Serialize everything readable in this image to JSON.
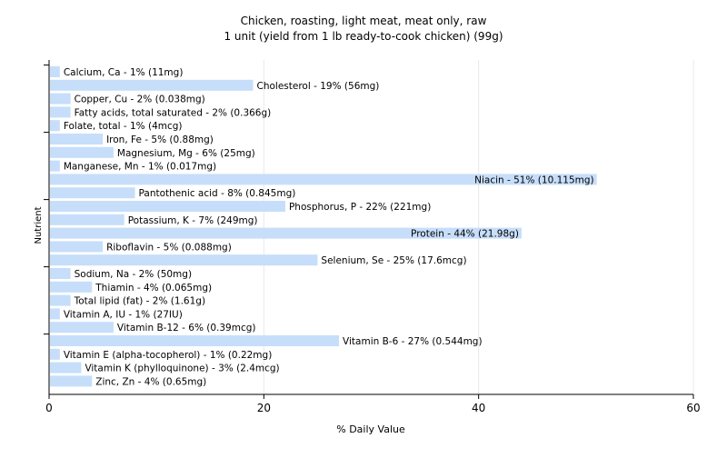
{
  "chart_data": {
    "type": "bar",
    "orientation": "horizontal",
    "title": "Chicken, roasting, light meat, meat only, raw",
    "subtitle": "1 unit (yield from 1 lb ready-to-cook chicken) (99g)",
    "xlabel": "% Daily Value",
    "ylabel": "Nutrient",
    "xlim": [
      0,
      60
    ],
    "xticks": [
      0,
      20,
      40,
      60
    ],
    "grid": true,
    "legend": "none",
    "bar_color": "#c6defa",
    "categories": [
      "Calcium, Ca",
      "Cholesterol",
      "Copper, Cu",
      "Fatty acids, total saturated",
      "Folate, total",
      "Iron, Fe",
      "Magnesium, Mg",
      "Manganese, Mn",
      "Niacin",
      "Pantothenic acid",
      "Phosphorus, P",
      "Potassium, K",
      "Protein",
      "Riboflavin",
      "Selenium, Se",
      "Sodium, Na",
      "Thiamin",
      "Total lipid (fat)",
      "Vitamin A, IU",
      "Vitamin B-12",
      "Vitamin B-6",
      "Vitamin E (alpha-tocopherol)",
      "Vitamin K (phylloquinone)",
      "Zinc, Zn"
    ],
    "values": [
      1,
      19,
      2,
      2,
      1,
      5,
      6,
      1,
      51,
      8,
      22,
      7,
      44,
      5,
      25,
      2,
      4,
      2,
      1,
      6,
      27,
      1,
      3,
      4
    ],
    "amounts": [
      "11mg",
      "56mg",
      "0.038mg",
      "0.366g",
      "4mcg",
      "0.88mg",
      "25mg",
      "0.017mg",
      "10.115mg",
      "0.845mg",
      "221mg",
      "249mg",
      "21.98g",
      "0.088mg",
      "17.6mcg",
      "50mg",
      "0.065mg",
      "1.61g",
      "27IU",
      "0.39mcg",
      "0.544mg",
      "0.22mg",
      "2.4mcg",
      "0.65mg"
    ],
    "labels": [
      "Calcium, Ca - 1% (11mg)",
      "Cholesterol - 19% (56mg)",
      "Copper, Cu - 2% (0.038mg)",
      "Fatty acids, total saturated - 2% (0.366g)",
      "Folate, total - 1% (4mcg)",
      "Iron, Fe - 5% (0.88mg)",
      "Magnesium, Mg - 6% (25mg)",
      "Manganese, Mn - 1% (0.017mg)",
      "Niacin - 51% (10.115mg)",
      "Pantothenic acid - 8% (0.845mg)",
      "Phosphorus, P - 22% (221mg)",
      "Potassium, K - 7% (249mg)",
      "Protein - 44% (21.98g)",
      "Riboflavin - 5% (0.088mg)",
      "Selenium, Se - 25% (17.6mcg)",
      "Sodium, Na - 2% (50mg)",
      "Thiamin - 4% (0.065mg)",
      "Total lipid (fat) - 2% (1.61g)",
      "Vitamin A, IU - 1% (27IU)",
      "Vitamin B-12 - 6% (0.39mcg)",
      "Vitamin B-6 - 27% (0.544mg)",
      "Vitamin E (alpha-tocopherol) - 1% (0.22mg)",
      "Vitamin K (phylloquinone) - 3% (2.4mcg)",
      "Zinc, Zn - 4% (0.65mg)"
    ]
  }
}
